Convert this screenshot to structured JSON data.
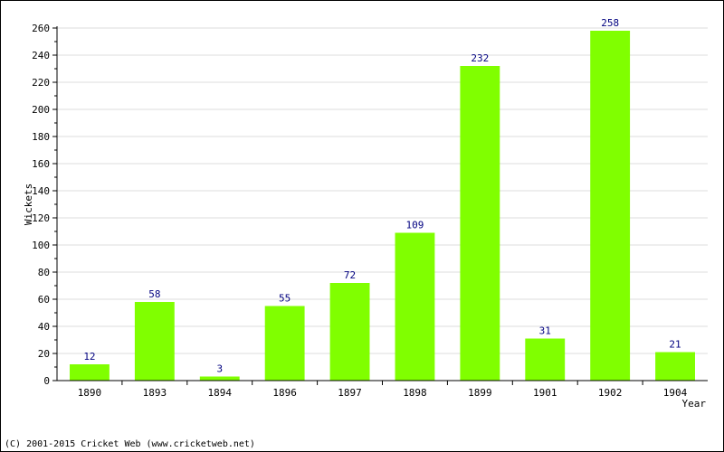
{
  "chart_data": {
    "type": "bar",
    "categories": [
      "1890",
      "1893",
      "1894",
      "1896",
      "1897",
      "1898",
      "1899",
      "1901",
      "1902",
      "1904"
    ],
    "values": [
      12,
      58,
      3,
      55,
      72,
      109,
      232,
      31,
      258,
      21
    ],
    "data_labels": [
      "12",
      "58",
      "3",
      "55",
      "72",
      "109",
      "232",
      "31",
      "258",
      "21"
    ],
    "xlabel": "Year",
    "ylabel": "Wickets",
    "ylim": [
      0,
      260
    ],
    "yticks": [
      0,
      20,
      40,
      60,
      80,
      100,
      120,
      140,
      160,
      180,
      200,
      220,
      240,
      260
    ],
    "ytick_labels": [
      "0",
      "20",
      "40",
      "60",
      "80",
      "100",
      "120",
      "140",
      "160",
      "180",
      "200",
      "220",
      "240",
      "260"
    ],
    "grid": true,
    "bar_color": "#80ff00",
    "data_label_color": "#000080"
  },
  "footer": {
    "copyright": "(C) 2001-2015 Cricket Web (www.cricketweb.net)"
  }
}
